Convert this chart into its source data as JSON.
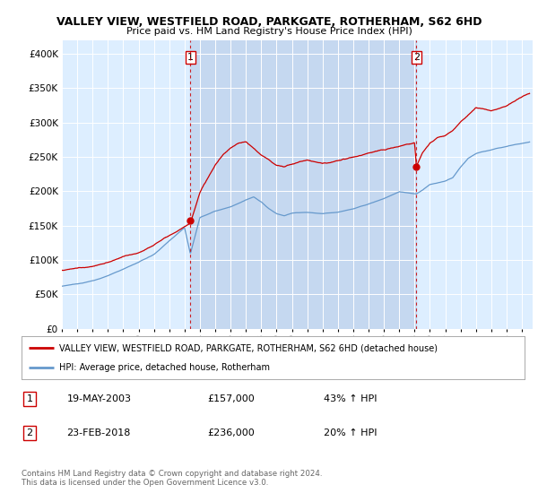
{
  "title": "VALLEY VIEW, WESTFIELD ROAD, PARKGATE, ROTHERHAM, S62 6HD",
  "subtitle": "Price paid vs. HM Land Registry's House Price Index (HPI)",
  "ylim": [
    0,
    420000
  ],
  "xlim_start": 1995.3,
  "xlim_end": 2025.7,
  "purchase1_date": 2003.38,
  "purchase1_price": 157000,
  "purchase2_date": 2018.12,
  "purchase2_price": 236000,
  "legend_line1": "VALLEY VIEW, WESTFIELD ROAD, PARKGATE, ROTHERHAM, S62 6HD (detached house)",
  "legend_line2": "HPI: Average price, detached house, Rotherham",
  "table_row1_date": "19-MAY-2003",
  "table_row1_price": "£157,000",
  "table_row1_pct": "43% ↑ HPI",
  "table_row2_date": "23-FEB-2018",
  "table_row2_price": "£236,000",
  "table_row2_pct": "20% ↑ HPI",
  "footer": "Contains HM Land Registry data © Crown copyright and database right 2024.\nThis data is licensed under the Open Government Licence v3.0.",
  "hpi_color": "#6699cc",
  "price_color": "#cc0000",
  "bg_color": "#ddeeff",
  "shaded_color": "#c5d8f0",
  "fig_bg": "#ffffff",
  "label_box_color": "#cc0000"
}
